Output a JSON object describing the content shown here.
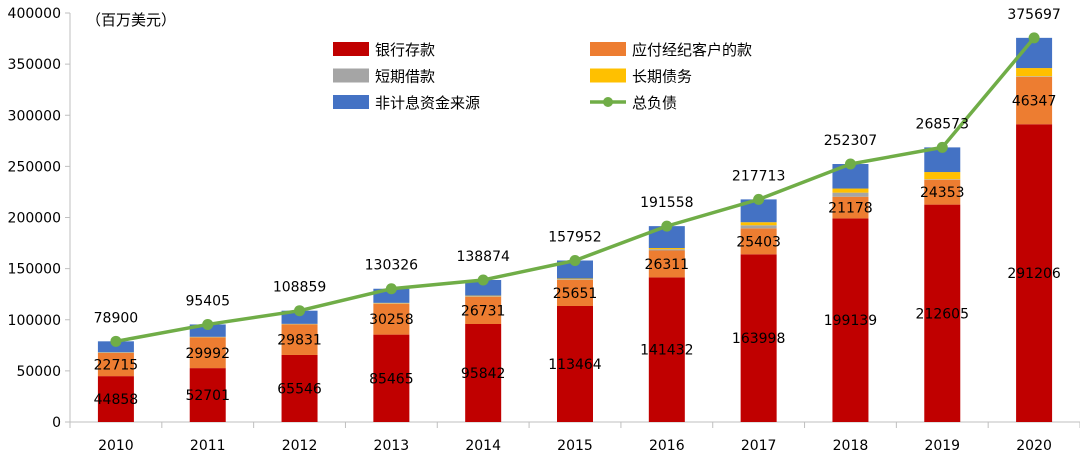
{
  "chart_data": {
    "type": "bar",
    "unit_label": "（百万美元）",
    "categories": [
      "2010",
      "2011",
      "2012",
      "2013",
      "2014",
      "2015",
      "2016",
      "2017",
      "2018",
      "2019",
      "2020"
    ],
    "ylim": [
      0,
      400000
    ],
    "yticks": [
      0,
      50000,
      100000,
      150000,
      200000,
      250000,
      300000,
      350000,
      400000
    ],
    "series": [
      {
        "name": "银行存款",
        "color": "#C00000",
        "values": [
          44858,
          52701,
          65546,
          85465,
          95842,
          113464,
          141432,
          163998,
          199139,
          212605,
          291206
        ],
        "labels": [
          "44858",
          "52701",
          "65546",
          "85465",
          "95842",
          "113464",
          "141432",
          "163998",
          "199139",
          "212605",
          "291206"
        ]
      },
      {
        "name": "应付经纪客户的款",
        "color": "#ED7D31",
        "values": [
          22715,
          29992,
          29831,
          30258,
          26731,
          25651,
          26311,
          25403,
          21178,
          24353,
          46347
        ],
        "labels": [
          "22715",
          "29992",
          "29831",
          "30258",
          "26731",
          "25651",
          "26311",
          "25403",
          "21178",
          "24353",
          "46347"
        ]
      },
      {
        "name": "短期借款",
        "color": "#A5A5A5",
        "values": [
          300,
          300,
          300,
          400,
          500,
          600,
          1200,
          3000,
          4000,
          500,
          600
        ]
      },
      {
        "name": "长期债务",
        "color": "#FFC000",
        "values": [
          300,
          300,
          300,
          400,
          500,
          600,
          1200,
          3000,
          4000,
          7000,
          8000
        ]
      },
      {
        "name": "非计息资金来源",
        "color": "#4472C4",
        "values": [
          10727,
          12112,
          12882,
          13803,
          15301,
          17637,
          21415,
          22312,
          23990,
          24115,
          29544
        ]
      }
    ],
    "line": {
      "name": "总负债",
      "color": "#70AD47",
      "values": [
        78900,
        95405,
        108859,
        130326,
        138874,
        157952,
        191558,
        217713,
        252307,
        268573,
        375697
      ],
      "labels": [
        "78900",
        "95405",
        "108859",
        "130326",
        "138874",
        "157952",
        "191558",
        "217713",
        "252307",
        "268573",
        "375697"
      ]
    },
    "legend_position": "top"
  }
}
